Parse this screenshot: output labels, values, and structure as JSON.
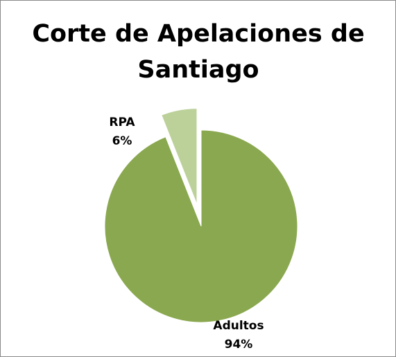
{
  "chart_data": {
    "type": "pie",
    "title": "Corte de Apelaciones de Santiago",
    "categories": [
      "Adultos",
      "RPA"
    ],
    "values": [
      94,
      6
    ],
    "value_labels": [
      "94%",
      "6%"
    ],
    "colors": [
      "#8aa84f",
      "#bcd19a"
    ]
  }
}
